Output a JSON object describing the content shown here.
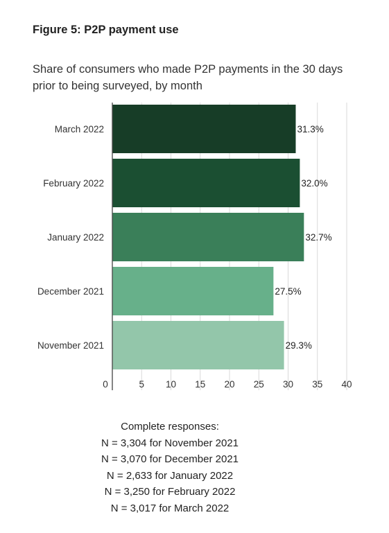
{
  "figure_title": "Figure 5: P2P payment use",
  "chart_data": {
    "type": "bar",
    "orientation": "horizontal",
    "title": "Share of consumers who made P2P payments in the 30 days prior to being surveyed, by month",
    "categories": [
      "March 2022",
      "February 2022",
      "January 2022",
      "December 2021",
      "November 2021"
    ],
    "values": [
      31.3,
      32.0,
      32.7,
      27.5,
      29.3
    ],
    "value_labels": [
      "31.3%",
      "32.0%",
      "32.7%",
      "27.5%",
      "29.3%"
    ],
    "bar_colors": [
      "#173d27",
      "#1b4f32",
      "#3a7f59",
      "#67b08a",
      "#93c6aa"
    ],
    "xlim": [
      0,
      40
    ],
    "xticks": [
      0,
      5,
      10,
      15,
      20,
      25,
      30,
      35,
      40
    ],
    "grid": true
  },
  "notes": {
    "heading": "Complete responses:",
    "lines": [
      "N = 3,304 for November 2021",
      "N = 3,070 for December 2021",
      "N = 2,633 for January 2022",
      "N = 3,250 for February 2022",
      "N = 3,017 for March 2022"
    ]
  }
}
